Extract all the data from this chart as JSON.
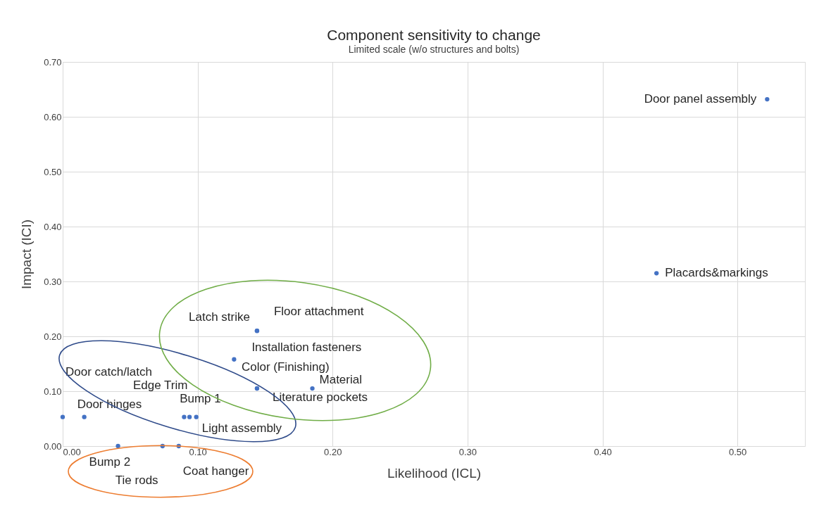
{
  "chart_data": {
    "type": "scatter",
    "title": "Component sensitivity to change",
    "subtitle": "Limited scale (w/o structures and bolts)",
    "xlabel": "Likelihood (ICL)",
    "ylabel": "Impact (ICI)",
    "xlim": [
      0,
      0.55
    ],
    "ylim": [
      0,
      0.7
    ],
    "xticks": [
      {
        "value": 0,
        "label": "0.00"
      },
      {
        "value": 0.1,
        "label": "0.10"
      },
      {
        "value": 0.2,
        "label": "0.20"
      },
      {
        "value": 0.3,
        "label": "0.30"
      },
      {
        "value": 0.4,
        "label": "0.40"
      },
      {
        "value": 0.5,
        "label": "0.50"
      }
    ],
    "yticks": [
      {
        "value": 0,
        "label": "0.00"
      },
      {
        "value": 0.1,
        "label": "0.10"
      },
      {
        "value": 0.2,
        "label": "0.20"
      },
      {
        "value": 0.3,
        "label": "0.30"
      },
      {
        "value": 0.4,
        "label": "0.40"
      },
      {
        "value": 0.5,
        "label": "0.50"
      },
      {
        "value": 0.6,
        "label": "0.60"
      },
      {
        "value": 0.7,
        "label": "0.70"
      }
    ],
    "grid": true,
    "marker": "circle",
    "series": [
      {
        "color": "#4472c4",
        "x": [
          0.522,
          0.44,
          0.144,
          0.144,
          0.127,
          0.144,
          0.144,
          0.185,
          0.0,
          0.016,
          0.09,
          0.094,
          0.099,
          0.041,
          0.074,
          0.086
        ],
        "values": [
          0.632,
          0.315,
          0.21,
          0.21,
          0.158,
          0.105,
          0.105,
          0.105,
          0.053,
          0.053,
          0.053,
          0.053,
          0.053,
          0.0,
          0.0,
          0.0
        ],
        "value_labels": [
          "Door panel assembly",
          "Placards&markings",
          "Latch strike",
          "Floor attachment",
          "Installation fasteners",
          "Color (Finishing)",
          "Literature pockets",
          "Material",
          "Door catch/latch",
          "Door hinges",
          "Edge Trim",
          "Bump 1",
          "Light assembly",
          "Bump 2",
          "Tie rods",
          "Coat hanger"
        ]
      }
    ]
  }
}
